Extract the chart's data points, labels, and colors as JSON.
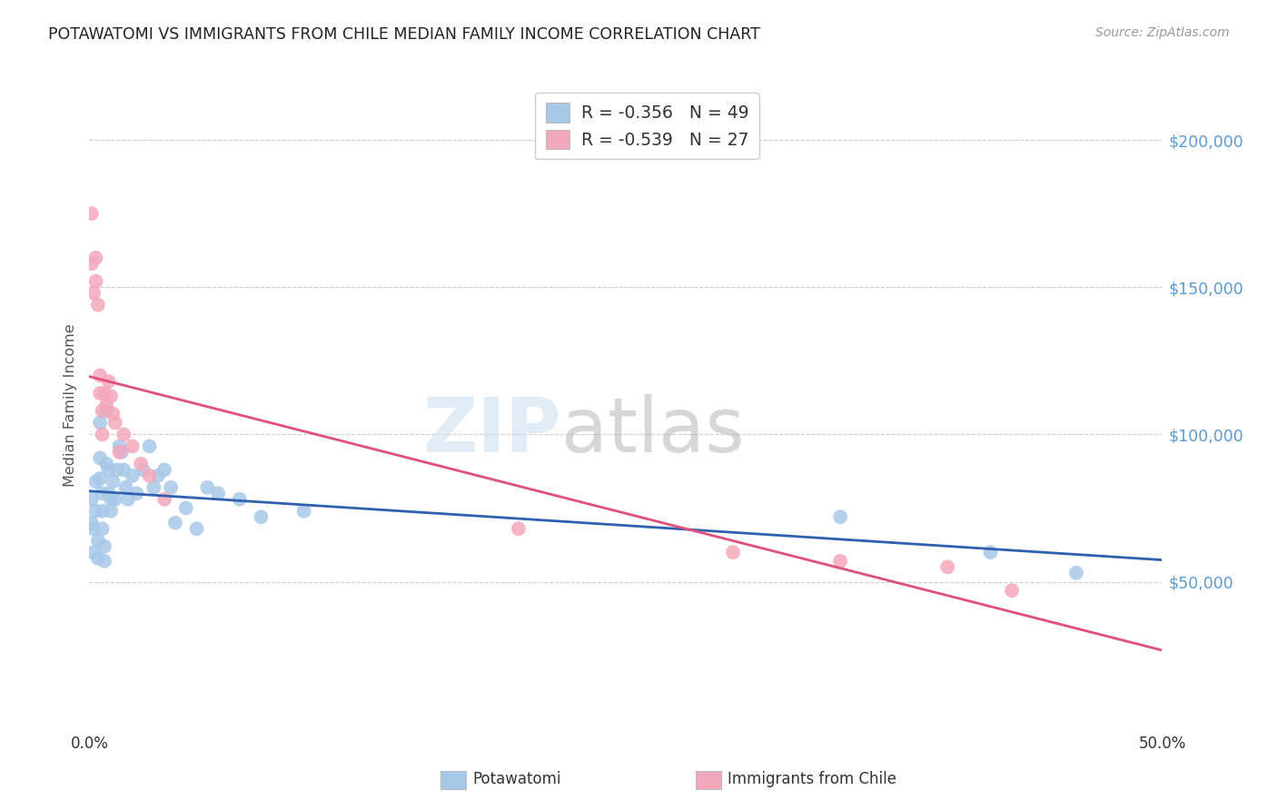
{
  "title": "POTAWATOMI VS IMMIGRANTS FROM CHILE MEDIAN FAMILY INCOME CORRELATION CHART",
  "source": "Source: ZipAtlas.com",
  "ylabel": "Median Family Income",
  "xlim": [
    0.0,
    0.5
  ],
  "ylim": [
    0,
    220000
  ],
  "y_ticks": [
    50000,
    100000,
    150000,
    200000
  ],
  "y_tick_labels": [
    "$50,000",
    "$100,000",
    "$150,000",
    "$200,000"
  ],
  "x_ticks": [
    0.0,
    0.5
  ],
  "x_tick_labels": [
    "0.0%",
    "50.0%"
  ],
  "blue_R": "-0.356",
  "blue_N": "49",
  "pink_R": "-0.539",
  "pink_N": "27",
  "blue_scatter_color": "#a8c8e8",
  "pink_scatter_color": "#f4a8bb",
  "blue_line_color": "#3060b0",
  "pink_line_color": "#e0507a",
  "grid_color": "#cccccc",
  "bg_color": "#ffffff",
  "title_color": "#222222",
  "source_color": "#999999",
  "ylabel_color": "#555555",
  "right_axis_color": "#5b9bd5",
  "legend_label_blue": "Potawatomi",
  "legend_label_pink": "Immigrants from Chile",
  "potawatomi_x": [
    0.001,
    0.001,
    0.002,
    0.002,
    0.003,
    0.003,
    0.004,
    0.004,
    0.005,
    0.005,
    0.005,
    0.006,
    0.006,
    0.006,
    0.007,
    0.007,
    0.008,
    0.008,
    0.009,
    0.009,
    0.01,
    0.01,
    0.011,
    0.012,
    0.013,
    0.014,
    0.015,
    0.016,
    0.017,
    0.018,
    0.02,
    0.022,
    0.025,
    0.028,
    0.03,
    0.032,
    0.035,
    0.038,
    0.04,
    0.045,
    0.05,
    0.055,
    0.06,
    0.07,
    0.08,
    0.1,
    0.35,
    0.42,
    0.46
  ],
  "potawatomi_y": [
    78000,
    70000,
    68000,
    60000,
    84000,
    74000,
    64000,
    58000,
    104000,
    92000,
    85000,
    80000,
    74000,
    68000,
    62000,
    57000,
    108000,
    90000,
    88000,
    80000,
    78000,
    74000,
    84000,
    78000,
    88000,
    96000,
    94000,
    88000,
    82000,
    78000,
    86000,
    80000,
    88000,
    96000,
    82000,
    86000,
    88000,
    82000,
    70000,
    75000,
    68000,
    82000,
    80000,
    78000,
    72000,
    74000,
    72000,
    60000,
    53000
  ],
  "chile_x": [
    0.001,
    0.001,
    0.002,
    0.003,
    0.003,
    0.004,
    0.005,
    0.005,
    0.006,
    0.006,
    0.007,
    0.008,
    0.009,
    0.01,
    0.011,
    0.012,
    0.014,
    0.016,
    0.02,
    0.024,
    0.028,
    0.035,
    0.2,
    0.3,
    0.35,
    0.4,
    0.43
  ],
  "chile_y": [
    175000,
    158000,
    148000,
    160000,
    152000,
    144000,
    120000,
    114000,
    108000,
    100000,
    114000,
    110000,
    118000,
    113000,
    107000,
    104000,
    94000,
    100000,
    96000,
    90000,
    86000,
    78000,
    68000,
    60000,
    57000,
    55000,
    47000
  ]
}
